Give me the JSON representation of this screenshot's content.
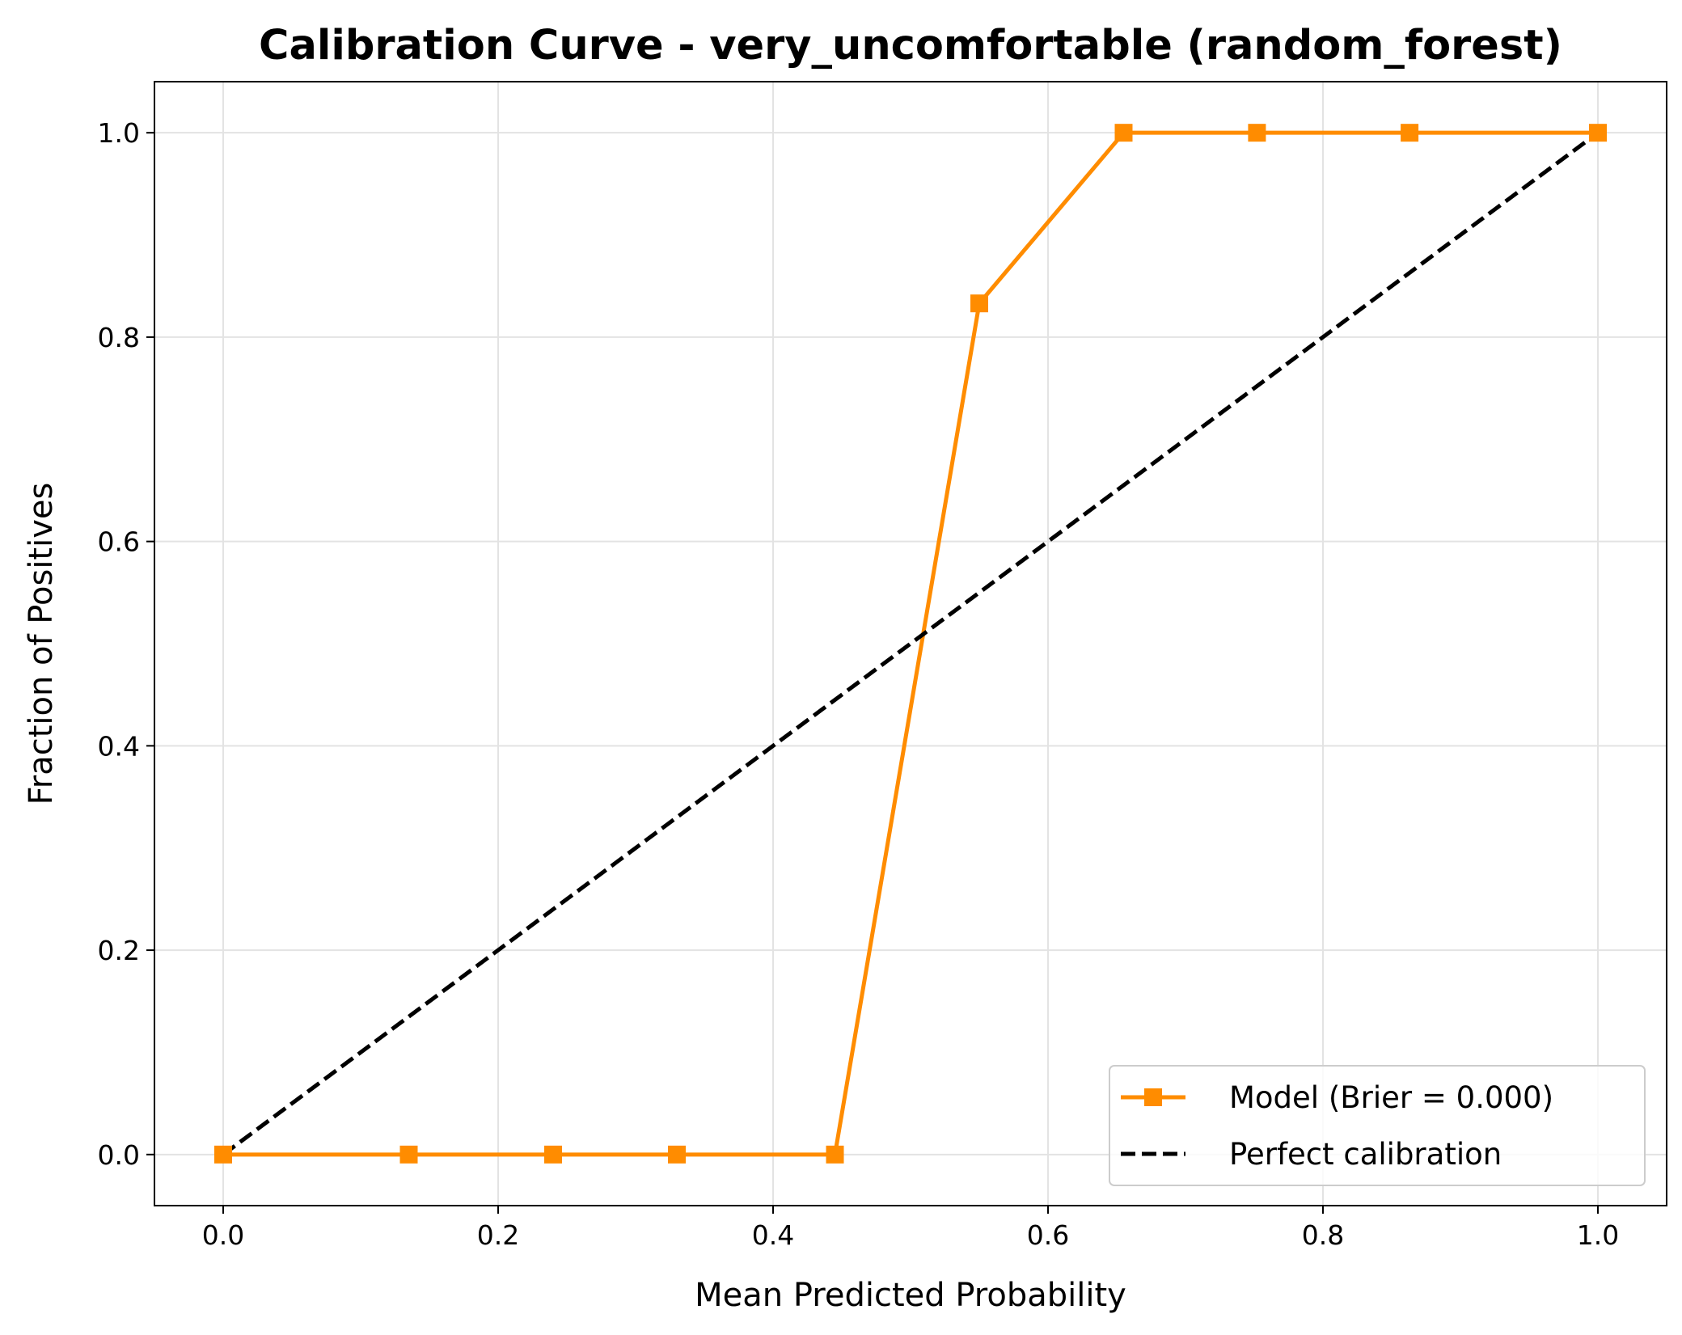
{
  "chart_data": {
    "type": "line",
    "title": "Calibration Curve - very_uncomfortable (random_forest)",
    "xlabel": "Mean Predicted Probability",
    "ylabel": "Fraction of Positives",
    "xlim": [
      -0.05,
      1.05
    ],
    "ylim": [
      -0.05,
      1.05
    ],
    "xticks": [
      0.0,
      0.2,
      0.4,
      0.6,
      0.8,
      1.0
    ],
    "yticks": [
      0.0,
      0.2,
      0.4,
      0.6,
      0.8,
      1.0
    ],
    "xtick_labels": [
      "0.0",
      "0.2",
      "0.4",
      "0.6",
      "0.8",
      "1.0"
    ],
    "ytick_labels": [
      "0.0",
      "0.2",
      "0.4",
      "0.6",
      "0.8",
      "1.0"
    ],
    "grid": true,
    "legend_position": "lower-right",
    "series": [
      {
        "name": "Model (Brier = 0.000)",
        "color": "#ff8c00",
        "marker": "square",
        "line_style": "solid",
        "x": [
          0.0,
          0.135,
          0.24,
          0.33,
          0.445,
          0.55,
          0.655,
          0.752,
          0.863,
          1.0
        ],
        "y": [
          0.0,
          0.0,
          0.0,
          0.0,
          0.0,
          0.833,
          1.0,
          1.0,
          1.0,
          1.0
        ]
      },
      {
        "name": "Perfect calibration",
        "color": "#000000",
        "line_style": "dashed",
        "x": [
          0.0,
          1.0
        ],
        "y": [
          0.0,
          1.0
        ]
      }
    ]
  }
}
